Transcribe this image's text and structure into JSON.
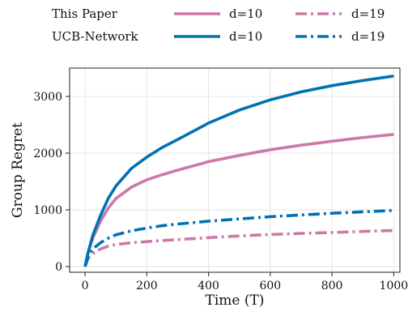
{
  "chart_data": {
    "type": "line",
    "title": "",
    "xlabel": "Time (T)",
    "ylabel": "Group Regret",
    "xlim": [
      -50,
      1020
    ],
    "ylim": [
      -100,
      3500
    ],
    "xticks": [
      0,
      200,
      400,
      600,
      800,
      1000
    ],
    "yticks": [
      0,
      1000,
      2000,
      3000
    ],
    "grid": true,
    "legend_position": "top, above plot (two rows)",
    "legend_rows": [
      {
        "label": "This Paper"
      },
      {
        "label": "UCB-Network"
      }
    ],
    "x": [
      0,
      10,
      25,
      50,
      75,
      100,
      150,
      200,
      250,
      300,
      400,
      500,
      600,
      700,
      800,
      900,
      1000
    ],
    "series": [
      {
        "name": "d=10",
        "method": "This Paper",
        "color": "#cc79a7",
        "dash": "solid",
        "values": [
          0,
          250,
          500,
          800,
          1030,
          1200,
          1400,
          1530,
          1620,
          1700,
          1850,
          1960,
          2060,
          2140,
          2210,
          2275,
          2330
        ]
      },
      {
        "name": "d=19",
        "method": "This Paper",
        "color": "#cc79a7",
        "dash": "dashdot",
        "values": [
          0,
          150,
          230,
          310,
          360,
          390,
          420,
          440,
          460,
          475,
          510,
          540,
          565,
          585,
          600,
          620,
          635
        ]
      },
      {
        "name": "d=10",
        "method": "UCB-Network",
        "color": "#0072b2",
        "dash": "solid",
        "values": [
          0,
          250,
          550,
          900,
          1200,
          1420,
          1730,
          1930,
          2100,
          2240,
          2530,
          2760,
          2940,
          3080,
          3190,
          3280,
          3360
        ]
      },
      {
        "name": "d=19",
        "method": "UCB-Network",
        "color": "#0072b2",
        "dash": "dashdot",
        "values": [
          0,
          180,
          310,
          420,
          500,
          560,
          630,
          680,
          720,
          750,
          800,
          840,
          880,
          910,
          940,
          965,
          990
        ]
      }
    ]
  }
}
